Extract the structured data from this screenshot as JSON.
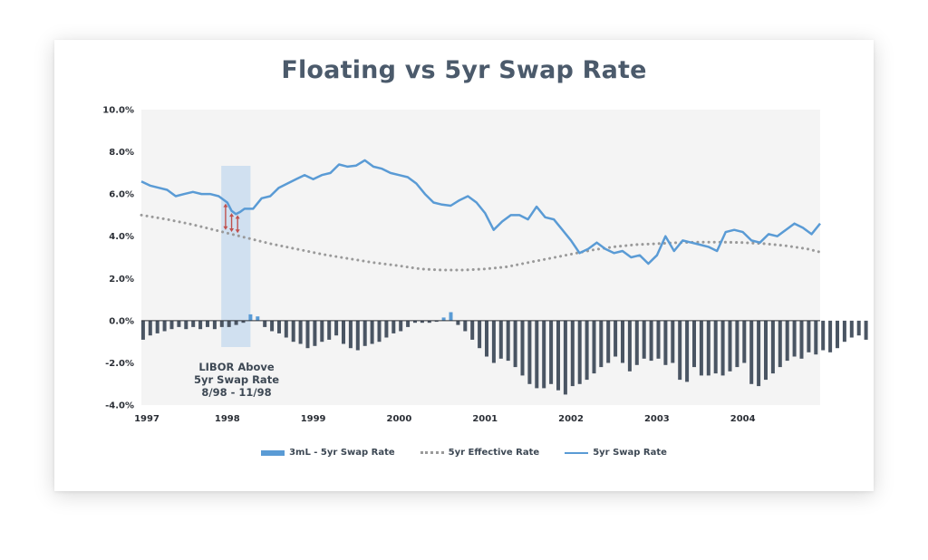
{
  "chart_data": {
    "type": "bar+line",
    "title": "Floating vs 5yr Swap Rate",
    "xlabel": "",
    "ylabel": "",
    "x_range": [
      1997,
      2004.9
    ],
    "ylim": [
      -4.0,
      10.0
    ],
    "y_ticks": [
      10,
      8,
      6,
      4,
      2,
      0,
      -2,
      -4
    ],
    "y_tick_labels": [
      "10.0%",
      "8.0%",
      "6.0%",
      "4.0%",
      "2.0%",
      "0.0%",
      "-2.0%",
      "-4.0%"
    ],
    "x_ticks": [
      1997,
      1998,
      1999,
      2000,
      2001,
      2002,
      2003,
      2004
    ],
    "x_tick_labels": [
      "1997",
      "1998",
      "1999",
      "2000",
      "2001",
      "2002",
      "2003",
      "2004"
    ],
    "colors": {
      "bar_negative": "#4a5563",
      "bar_positive": "#5a9bd5",
      "swap_line": "#5a9bd5",
      "effective": "#9a9a9a",
      "highlight": "#c9dcef",
      "arrows": "#c0504d",
      "plot_bg": "#f4f4f4"
    },
    "highlight_range": [
      1997.93,
      1998.27
    ],
    "annotation": {
      "line1": "LIBOR Above",
      "line2": "5yr Swap Rate",
      "line3": "8/98 - 11/98"
    },
    "arrows_x": [
      1997.98,
      1998.05,
      1998.12
    ],
    "bar_start": 1997.02,
    "bar_step": 0.0833,
    "series": [
      {
        "name": "3mL - 5yr Swap Rate",
        "type": "bar",
        "values": [
          -0.9,
          -0.7,
          -0.6,
          -0.5,
          -0.4,
          -0.3,
          -0.4,
          -0.3,
          -0.4,
          -0.3,
          -0.4,
          -0.3,
          -0.3,
          -0.2,
          -0.1,
          0.3,
          0.2,
          -0.3,
          -0.5,
          -0.6,
          -0.8,
          -1.0,
          -1.1,
          -1.3,
          -1.2,
          -1.0,
          -0.9,
          -0.7,
          -1.1,
          -1.3,
          -1.4,
          -1.2,
          -1.1,
          -1.0,
          -0.8,
          -0.6,
          -0.5,
          -0.3,
          -0.1,
          -0.1,
          -0.1,
          -0.05,
          0.15,
          0.4,
          -0.2,
          -0.5,
          -0.9,
          -1.3,
          -1.7,
          -2.0,
          -1.8,
          -1.9,
          -2.2,
          -2.6,
          -3.0,
          -3.2,
          -3.2,
          -3.0,
          -3.3,
          -3.5,
          -3.1,
          -3.0,
          -2.8,
          -2.5,
          -2.2,
          -2.0,
          -1.7,
          -2.0,
          -2.4,
          -2.1,
          -1.8,
          -1.9,
          -1.8,
          -2.1,
          -2.0,
          -2.8,
          -2.9,
          -2.2,
          -2.6,
          -2.6,
          -2.5,
          -2.6,
          -2.4,
          -2.2,
          -2.0,
          -3.0,
          -3.1,
          -2.8,
          -2.5,
          -2.2,
          -1.9,
          -1.7,
          -1.8,
          -1.5,
          -1.6,
          -1.4,
          -1.5,
          -1.3,
          -1.0,
          -0.8,
          -0.7,
          -0.9
        ]
      },
      {
        "name": "5yr Effective Rate",
        "type": "line",
        "style": "dotted",
        "x": [
          1997.0,
          1997.3,
          1997.6,
          1997.9,
          1998.2,
          1998.5,
          1998.8,
          1999.1,
          1999.4,
          1999.7,
          2000.0,
          2000.25,
          2000.5,
          2000.75,
          2001.0,
          2001.25,
          2001.5,
          2001.75,
          2002.0,
          2002.25,
          2002.5,
          2002.75,
          2003.0,
          2003.25,
          2003.5,
          2003.75,
          2004.0,
          2004.25,
          2004.5,
          2004.75,
          2004.9
        ],
        "y": [
          5.0,
          4.8,
          4.55,
          4.25,
          3.95,
          3.65,
          3.4,
          3.15,
          2.95,
          2.75,
          2.6,
          2.45,
          2.4,
          2.4,
          2.45,
          2.55,
          2.75,
          2.95,
          3.15,
          3.35,
          3.5,
          3.6,
          3.65,
          3.7,
          3.72,
          3.72,
          3.7,
          3.65,
          3.55,
          3.4,
          3.25
        ]
      },
      {
        "name": "5yr Swap Rate",
        "type": "line",
        "style": "solid",
        "x": [
          1997.0,
          1997.1,
          1997.2,
          1997.3,
          1997.4,
          1997.5,
          1997.6,
          1997.7,
          1997.8,
          1997.9,
          1998.0,
          1998.05,
          1998.1,
          1998.15,
          1998.2,
          1998.3,
          1998.4,
          1998.5,
          1998.6,
          1998.7,
          1998.8,
          1998.9,
          1999.0,
          1999.1,
          1999.2,
          1999.3,
          1999.4,
          1999.5,
          1999.6,
          1999.7,
          1999.8,
          1999.9,
          2000.0,
          2000.1,
          2000.2,
          2000.3,
          2000.4,
          2000.5,
          2000.6,
          2000.7,
          2000.8,
          2000.9,
          2001.0,
          2001.1,
          2001.2,
          2001.3,
          2001.4,
          2001.5,
          2001.6,
          2001.7,
          2001.8,
          2001.9,
          2002.0,
          2002.1,
          2002.2,
          2002.3,
          2002.4,
          2002.5,
          2002.6,
          2002.7,
          2002.8,
          2002.9,
          2003.0,
          2003.1,
          2003.2,
          2003.3,
          2003.4,
          2003.5,
          2003.6,
          2003.7,
          2003.8,
          2003.9,
          2004.0,
          2004.1,
          2004.2,
          2004.3,
          2004.4,
          2004.5,
          2004.6,
          2004.7,
          2004.8,
          2004.9
        ],
        "y": [
          6.6,
          6.4,
          6.3,
          6.2,
          5.9,
          6.0,
          6.1,
          6.0,
          6.0,
          5.9,
          5.6,
          5.2,
          5.05,
          5.15,
          5.3,
          5.3,
          5.8,
          5.9,
          6.3,
          6.5,
          6.7,
          6.9,
          6.7,
          6.9,
          7.0,
          7.4,
          7.3,
          7.35,
          7.6,
          7.3,
          7.2,
          7.0,
          6.9,
          6.8,
          6.5,
          6.0,
          5.6,
          5.5,
          5.45,
          5.7,
          5.9,
          5.6,
          5.1,
          4.3,
          4.7,
          5.0,
          5.0,
          4.8,
          5.4,
          4.9,
          4.8,
          4.3,
          3.8,
          3.2,
          3.4,
          3.7,
          3.4,
          3.2,
          3.3,
          3.0,
          3.1,
          2.7,
          3.1,
          4.0,
          3.3,
          3.8,
          3.7,
          3.6,
          3.5,
          3.3,
          4.2,
          4.3,
          4.2,
          3.8,
          3.7,
          4.1,
          4.0,
          4.3,
          4.6,
          4.4,
          4.1,
          4.6
        ]
      }
    ]
  }
}
